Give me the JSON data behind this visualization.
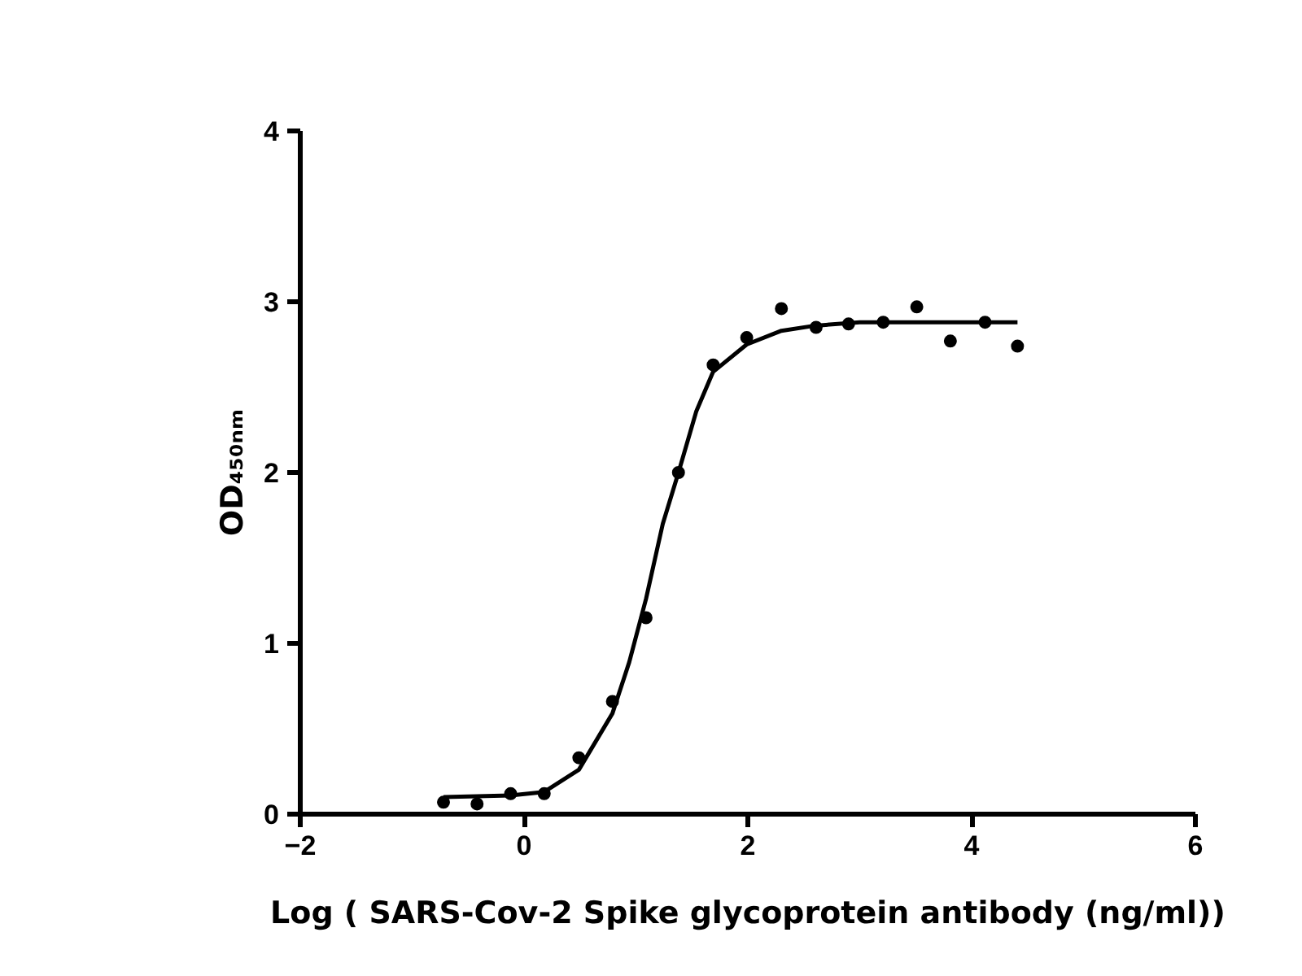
{
  "chart_data": {
    "type": "scatter",
    "xlabel": "Log ( SARS-Cov-2 Spike glycoprotein antibody (ng/ml))",
    "ylabel": "OD₄₅₀ₙₘ",
    "xlim": [
      -2,
      6
    ],
    "ylim": [
      0,
      4
    ],
    "xticks": [
      -2,
      0,
      2,
      4,
      6
    ],
    "yticks": [
      0,
      1,
      2,
      3,
      4
    ],
    "grid": false,
    "series": [
      {
        "marker": "circle",
        "color": "#000000",
        "x": [
          -0.72,
          -0.42,
          -0.12,
          0.18,
          0.49,
          0.79,
          1.09,
          1.38,
          1.69,
          1.99,
          2.3,
          2.61,
          2.9,
          3.21,
          3.51,
          3.81,
          4.12,
          4.41
        ],
        "values": [
          0.07,
          0.06,
          0.12,
          0.12,
          0.33,
          0.66,
          1.15,
          2.0,
          2.63,
          2.79,
          2.96,
          2.85,
          2.87,
          2.88,
          2.97,
          2.77,
          2.88,
          2.74
        ]
      },
      {
        "type": "line",
        "color": "#000000",
        "line_style": "solid",
        "x": [
          -0.72,
          -0.12,
          0.18,
          0.49,
          0.79,
          0.94,
          1.09,
          1.24,
          1.38,
          1.54,
          1.69,
          1.99,
          2.3,
          2.6,
          3.0,
          4.41
        ],
        "values": [
          0.1,
          0.11,
          0.13,
          0.26,
          0.59,
          0.89,
          1.26,
          1.7,
          2.0,
          2.36,
          2.59,
          2.75,
          2.83,
          2.86,
          2.88,
          2.88
        ]
      }
    ]
  }
}
